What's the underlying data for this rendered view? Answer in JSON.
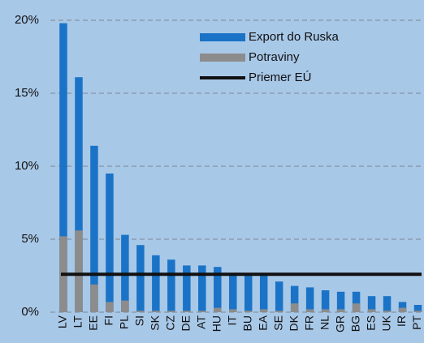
{
  "chart_data": {
    "type": "bar",
    "categories": [
      "LV",
      "LT",
      "EE",
      "FI",
      "PL",
      "SI",
      "SK",
      "CZ",
      "DE",
      "AT",
      "HU",
      "IT",
      "BU",
      "EA",
      "SE",
      "DK",
      "FR",
      "NL",
      "GR",
      "BG",
      "ES",
      "UK",
      "IR",
      "PT"
    ],
    "series": [
      {
        "name": "Export do Ruska",
        "color": "#1a73c6",
        "values": [
          19.8,
          16.1,
          11.4,
          9.5,
          5.3,
          4.6,
          3.9,
          3.6,
          3.2,
          3.2,
          3.1,
          2.6,
          2.5,
          2.6,
          2.1,
          1.8,
          1.7,
          1.5,
          1.4,
          1.4,
          1.1,
          1.1,
          0.7,
          0.5
        ]
      },
      {
        "name": "Potraviny",
        "color": "#8c8c8c",
        "values": [
          5.2,
          5.6,
          1.9,
          0.7,
          0.8,
          0.1,
          0.1,
          0.1,
          0.1,
          0.1,
          0.3,
          0.2,
          0.1,
          0.2,
          0.1,
          0.6,
          0.2,
          0.2,
          0.2,
          0.6,
          0.2,
          0.1,
          0.3,
          0.1
        ]
      }
    ],
    "reference": {
      "name": "Priemer EÚ",
      "value": 2.6,
      "color": "#111111"
    },
    "ylim": [
      0,
      20
    ],
    "yticks": [
      {
        "value": 0,
        "label": "0%"
      },
      {
        "value": 5,
        "label": "5%"
      },
      {
        "value": 10,
        "label": "10%"
      },
      {
        "value": 15,
        "label": "15%"
      },
      {
        "value": 20,
        "label": "20%"
      }
    ],
    "grid": true,
    "legend": "top-right",
    "overlap": true
  }
}
